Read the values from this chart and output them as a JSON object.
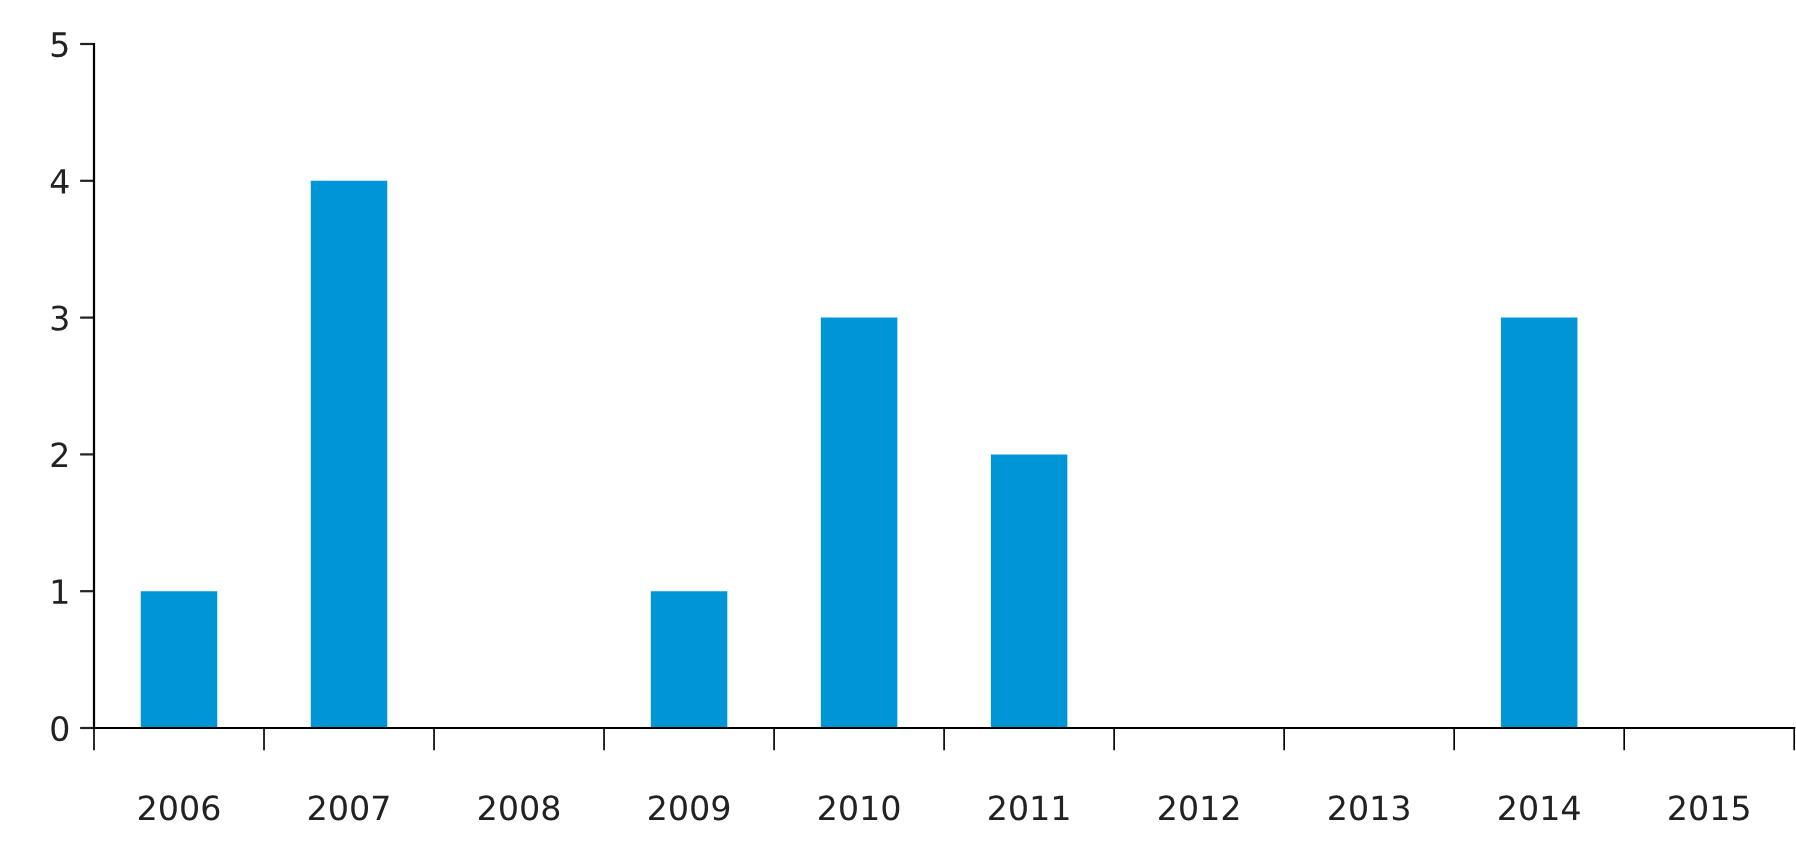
{
  "chart_data": {
    "type": "bar",
    "categories": [
      "2006",
      "2007",
      "2008",
      "2009",
      "2010",
      "2011",
      "2012",
      "2013",
      "2014",
      "2015"
    ],
    "values": [
      1,
      4,
      0,
      1,
      3,
      2,
      0,
      0,
      3,
      0
    ],
    "color": "#0096d6",
    "ylim": [
      0,
      5
    ],
    "yticks": [
      0,
      1,
      2,
      3,
      4,
      5
    ],
    "grid": false,
    "legend": false
  }
}
